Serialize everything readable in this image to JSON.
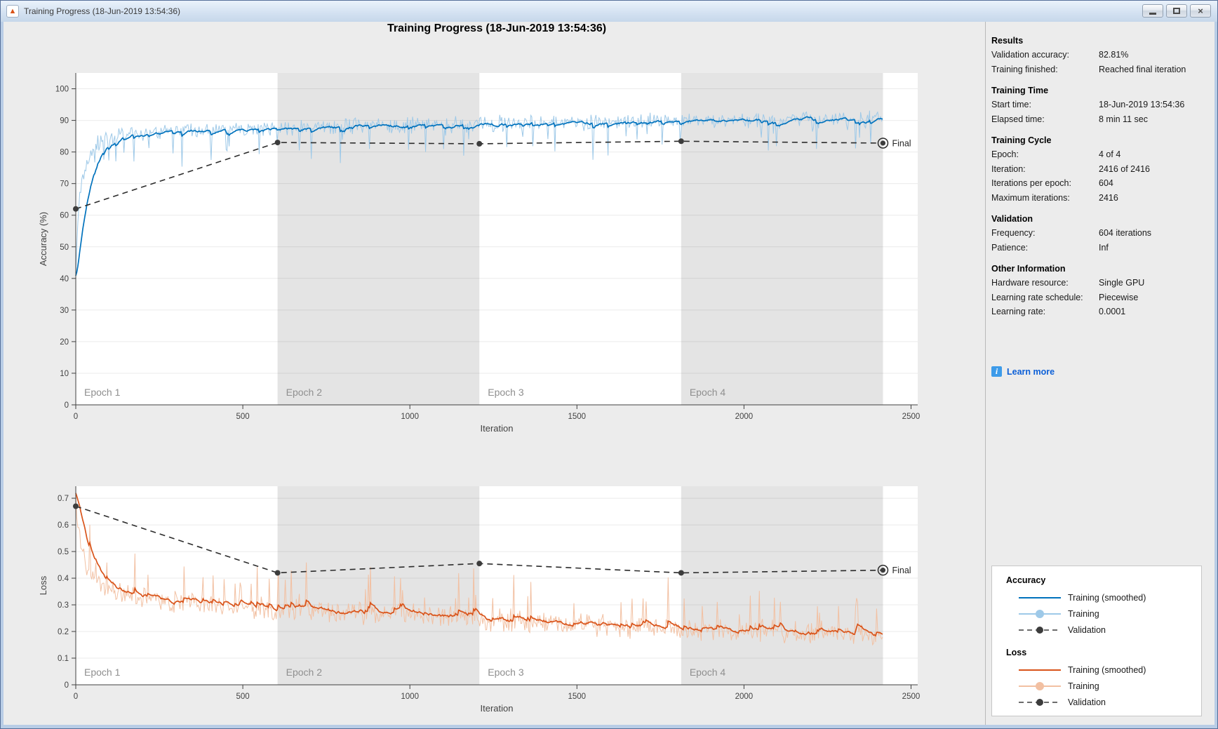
{
  "window": {
    "title": "Training Progress (18-Jun-2019 13:54:36)",
    "controls": [
      {
        "name": "minimize"
      },
      {
        "name": "maximize"
      },
      {
        "name": "close"
      }
    ]
  },
  "page": {
    "title": "Training Progress (18-Jun-2019 13:54:36)"
  },
  "panel": {
    "sections": [
      {
        "title": "Results",
        "rows": [
          {
            "label": "Validation accuracy:",
            "value": "82.81%"
          },
          {
            "label": "Training finished:",
            "value": "Reached final iteration"
          }
        ]
      },
      {
        "title": "Training Time",
        "rows": [
          {
            "label": "Start time:",
            "value": "18-Jun-2019 13:54:36"
          },
          {
            "label": "Elapsed time:",
            "value": "8 min 11 sec"
          }
        ]
      },
      {
        "title": "Training Cycle",
        "rows": [
          {
            "label": "Epoch:",
            "value": "4 of 4"
          },
          {
            "label": "Iteration:",
            "value": "2416 of 2416"
          },
          {
            "label": "Iterations per epoch:",
            "value": "604"
          },
          {
            "label": "Maximum iterations:",
            "value": "2416"
          }
        ]
      },
      {
        "title": "Validation",
        "rows": [
          {
            "label": "Frequency:",
            "value": "604 iterations"
          },
          {
            "label": "Patience:",
            "value": "Inf"
          }
        ]
      },
      {
        "title": "Other Information",
        "rows": [
          {
            "label": "Hardware resource:",
            "value": "Single GPU"
          },
          {
            "label": "Learning rate schedule:",
            "value": "Piecewise"
          },
          {
            "label": "Learning rate:",
            "value": "0.0001"
          }
        ]
      }
    ],
    "learn_more": {
      "label": "Learn more",
      "icon": "info-icon",
      "link_color": "#0b5fd7"
    }
  },
  "legend": {
    "groups": [
      {
        "title": "Accuracy",
        "items": [
          {
            "label": "Training (smoothed)",
            "swatch": "solid",
            "color": "#0072bd"
          },
          {
            "label": "Training",
            "swatch": "line-marker",
            "color": "#9ec9e8"
          },
          {
            "label": "Validation",
            "swatch": "dash-marker",
            "color": "#3c3c3c"
          }
        ]
      },
      {
        "title": "Loss",
        "items": [
          {
            "label": "Training (smoothed)",
            "swatch": "solid",
            "color": "#d95319"
          },
          {
            "label": "Training",
            "swatch": "line-marker",
            "color": "#f2c0a2"
          },
          {
            "label": "Validation",
            "swatch": "dash-marker",
            "color": "#3c3c3c"
          }
        ]
      }
    ]
  },
  "chart_data": [
    {
      "id": "accuracy",
      "type": "line",
      "title": "",
      "xlabel": "Iteration",
      "ylabel": "Accuracy (%)",
      "xlim": [
        0,
        2520
      ],
      "ylim": [
        0,
        105
      ],
      "x_end": 2416,
      "xtick_values": [
        0,
        500,
        1000,
        1500,
        2000,
        2500
      ],
      "xtick_labels": [
        "0",
        "500",
        "1000",
        "1500",
        "2000",
        "2500"
      ],
      "ytick_values": [
        0,
        10,
        20,
        30,
        40,
        50,
        60,
        70,
        80,
        90,
        100
      ],
      "ytick_labels": [
        "0",
        "10",
        "20",
        "30",
        "40",
        "50",
        "60",
        "70",
        "80",
        "90",
        "100"
      ],
      "grid": "horizontal",
      "epoch_bands": [
        {
          "label": "Epoch 1",
          "from": 0,
          "to": 604,
          "shaded": false
        },
        {
          "label": "Epoch 2",
          "from": 604,
          "to": 1208,
          "shaded": true
        },
        {
          "label": "Epoch 3",
          "from": 1208,
          "to": 1812,
          "shaded": false
        },
        {
          "label": "Epoch 4",
          "from": 1812,
          "to": 2416,
          "shaded": true
        }
      ],
      "band_color": "#e4e4e4",
      "series": [
        {
          "name": "Training",
          "style": "raw",
          "color": "#9ec9e8",
          "backbone": [
            [
              0,
              40
            ],
            [
              6,
              58
            ],
            [
              15,
              68
            ],
            [
              30,
              76
            ],
            [
              60,
              82
            ],
            [
              100,
              84.5
            ],
            [
              150,
              85.5
            ],
            [
              250,
              86.5
            ],
            [
              400,
              87
            ],
            [
              604,
              87.5
            ],
            [
              900,
              88.3
            ],
            [
              1208,
              89
            ],
            [
              1500,
              89.3
            ],
            [
              1812,
              89.8
            ],
            [
              2100,
              90.2
            ],
            [
              2416,
              90.5
            ]
          ],
          "noise_amp": 3.0,
          "spike_p": 0.05,
          "spike_dir": -1,
          "seed": 12345,
          "step": 3,
          "clamp": [
            35,
            98.5
          ]
        },
        {
          "name": "Training (smoothed)",
          "style": "ema",
          "color": "#0072bd",
          "alpha": 0.12
        },
        {
          "name": "Validation",
          "style": "dashed",
          "color": "#2b2b2b",
          "points": [
            [
              0,
              62
            ],
            [
              604,
              83
            ],
            [
              1208,
              82.6
            ],
            [
              1812,
              83.4
            ],
            [
              2416,
              82.81
            ]
          ],
          "final_label": "Final"
        }
      ]
    },
    {
      "id": "loss",
      "type": "line",
      "title": "",
      "xlabel": "Iteration",
      "ylabel": "Loss",
      "xlim": [
        0,
        2520
      ],
      "ylim": [
        0,
        0.745
      ],
      "x_end": 2416,
      "xtick_values": [
        0,
        500,
        1000,
        1500,
        2000,
        2500
      ],
      "xtick_labels": [
        "0",
        "500",
        "1000",
        "1500",
        "2000",
        "2500"
      ],
      "ytick_values": [
        0,
        0.1,
        0.2,
        0.3,
        0.4,
        0.5,
        0.6,
        0.7
      ],
      "ytick_labels": [
        "0",
        "0.1",
        "0.2",
        "0.3",
        "0.4",
        "0.5",
        "0.6",
        "0.7"
      ],
      "grid": "horizontal",
      "epoch_bands": [
        {
          "label": "Epoch 1",
          "from": 0,
          "to": 604,
          "shaded": false
        },
        {
          "label": "Epoch 2",
          "from": 604,
          "to": 1208,
          "shaded": true
        },
        {
          "label": "Epoch 3",
          "from": 1208,
          "to": 1812,
          "shaded": false
        },
        {
          "label": "Epoch 4",
          "from": 1812,
          "to": 2416,
          "shaded": true
        }
      ],
      "band_color": "#e4e4e4",
      "series": [
        {
          "name": "Training",
          "style": "raw",
          "color": "#f2c0a2",
          "backbone": [
            [
              0,
              0.72
            ],
            [
              6,
              0.6
            ],
            [
              15,
              0.52
            ],
            [
              30,
              0.45
            ],
            [
              60,
              0.4
            ],
            [
              100,
              0.36
            ],
            [
              150,
              0.34
            ],
            [
              250,
              0.315
            ],
            [
              400,
              0.3
            ],
            [
              604,
              0.285
            ],
            [
              900,
              0.27
            ],
            [
              1208,
              0.25
            ],
            [
              1500,
              0.225
            ],
            [
              1812,
              0.21
            ],
            [
              2100,
              0.2
            ],
            [
              2416,
              0.19
            ]
          ],
          "noise_amp": 0.05,
          "spike_p": 0.06,
          "spike_dir": 1,
          "seed": 67890,
          "step": 3,
          "clamp": [
            0.05,
            0.73
          ]
        },
        {
          "name": "Training (smoothed)",
          "style": "ema",
          "color": "#d95319",
          "alpha": 0.12
        },
        {
          "name": "Validation",
          "style": "dashed",
          "color": "#2b2b2b",
          "points": [
            [
              0,
              0.67
            ],
            [
              604,
              0.42
            ],
            [
              1208,
              0.455
            ],
            [
              1812,
              0.42
            ],
            [
              2416,
              0.43
            ]
          ],
          "final_label": "Final"
        }
      ]
    }
  ]
}
